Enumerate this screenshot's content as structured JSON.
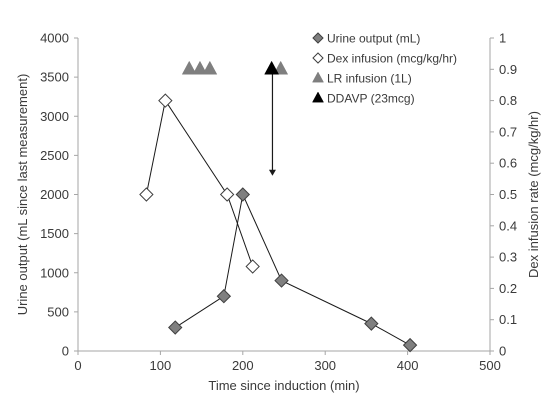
{
  "chart_data": {
    "type": "scatter",
    "title": "",
    "xlabel": "Time since induction (min)",
    "ylabel_left": "Urine output (mL since last measurement)",
    "ylabel_right": "Dex infusion rate (mcg/kg/hr)",
    "xlim": [
      0,
      500
    ],
    "ylim_left": [
      0,
      4000
    ],
    "ylim_right": [
      0,
      1
    ],
    "x_ticks": [
      "0",
      "100",
      "200",
      "300",
      "400",
      "500"
    ],
    "y_left_ticks": [
      "0",
      "500",
      "1000",
      "1500",
      "2000",
      "2500",
      "3000",
      "3500",
      "4000"
    ],
    "y_right_ticks": [
      "0",
      "0.1",
      "0.2",
      "0.3",
      "0.4",
      "0.5",
      "0.6",
      "0.7",
      "0.8",
      "0.9",
      "1"
    ],
    "grid": false,
    "legend_position": "top-right",
    "series": [
      {
        "name": "Urine output (mL)",
        "marker": "diamond-filled",
        "color": "#7f7f7f",
        "axis": "left",
        "connected": true,
        "x": [
          118,
          177,
          200,
          247,
          356,
          403
        ],
        "y": [
          300,
          700,
          2000,
          900,
          350,
          75
        ]
      },
      {
        "name": "Dex infusion (mcg/kg/hr)",
        "marker": "diamond-open",
        "color": "#ffffff",
        "axis": "right",
        "connected": true,
        "x": [
          83,
          106,
          181,
          212
        ],
        "y": [
          0.5,
          0.8,
          0.5,
          0.27
        ]
      },
      {
        "name": "LR infusion (1L)",
        "marker": "triangle",
        "color": "#7f7f7f",
        "axis": "right",
        "connected": false,
        "x": [
          135,
          148,
          160,
          246
        ],
        "y": [
          0.9,
          0.9,
          0.9,
          0.9
        ]
      },
      {
        "name": "DDAVP (23mcg)",
        "marker": "triangle",
        "color": "#000000",
        "axis": "right",
        "connected": false,
        "x": [
          235
        ],
        "y": [
          0.9
        ]
      }
    ],
    "annotations": [
      {
        "type": "arrow",
        "x": 236,
        "from_right": 0.9,
        "to_right": 0.56
      }
    ]
  }
}
